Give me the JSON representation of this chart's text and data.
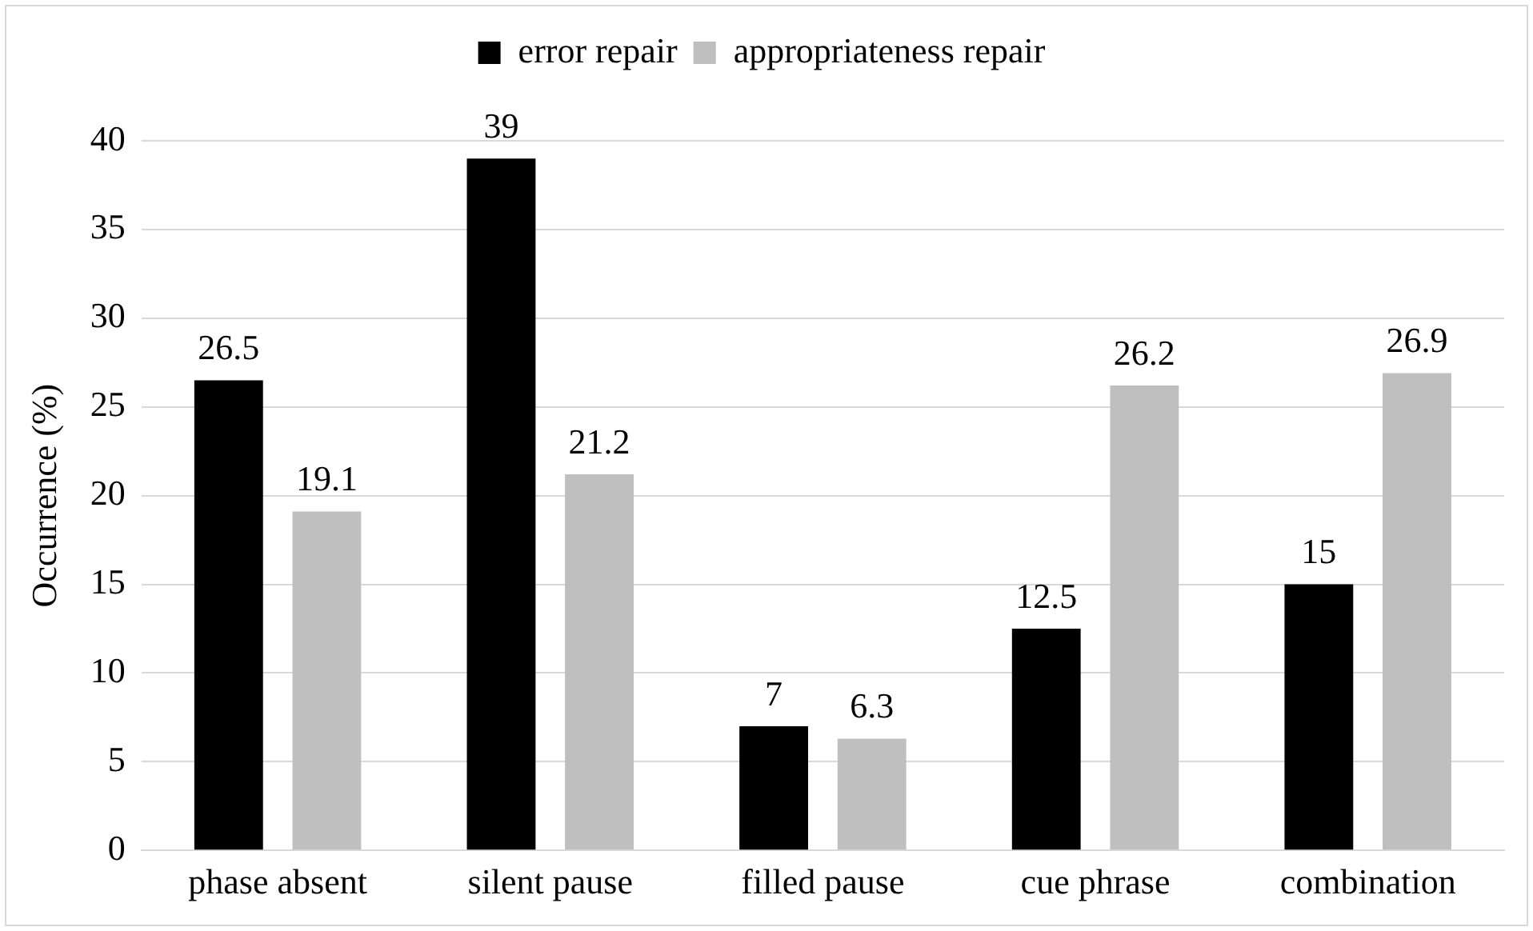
{
  "chart_data": {
    "type": "bar",
    "ylabel": "Occurrence (%)",
    "categories": [
      "phase absent",
      "silent pause",
      "filled pause",
      "cue phrase",
      "combination"
    ],
    "series": [
      {
        "name": "error repair",
        "color": "#000000",
        "values": [
          26.5,
          39,
          7,
          12.5,
          15
        ]
      },
      {
        "name": "appropriateness repair",
        "color": "#bfbfbf",
        "values": [
          19.1,
          21.2,
          6.3,
          26.2,
          26.9
        ]
      }
    ],
    "ylim": [
      0,
      40
    ],
    "yticks": [
      0,
      5,
      10,
      15,
      20,
      25,
      30,
      35,
      40
    ],
    "grid": "y",
    "legend": "top",
    "data_labels": true
  }
}
